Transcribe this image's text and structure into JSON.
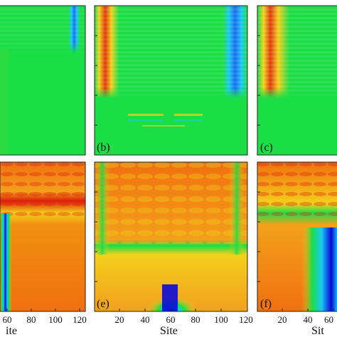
{
  "chart_data": [
    {
      "type": "heatmap",
      "panel": "",
      "xlabel": "",
      "colormap": [
        "#0a0ad8",
        "#19c8f0",
        "#1bde47",
        "#f3d01b",
        "#f07010",
        "#dd1d0c"
      ],
      "description_bands": "top panel, mostly green background with bright blue stripes near the right edge"
    },
    {
      "type": "heatmap",
      "panel": "(b)",
      "xlabel": ""
    },
    {
      "type": "heatmap",
      "panel": "(c)",
      "xlabel": ""
    },
    {
      "type": "heatmap",
      "panel": "",
      "xlabel": "ite",
      "x_ticks": [
        "60",
        "80",
        "100",
        "120"
      ]
    },
    {
      "type": "heatmap",
      "panel": "(e)",
      "xlabel": "Site",
      "x_ticks": [
        "20",
        "40",
        "60",
        "80",
        "100",
        "120"
      ]
    },
    {
      "type": "heatmap",
      "panel": "(f)",
      "xlabel": "Sit",
      "x_ticks": [
        "20",
        "40",
        "60"
      ]
    }
  ]
}
